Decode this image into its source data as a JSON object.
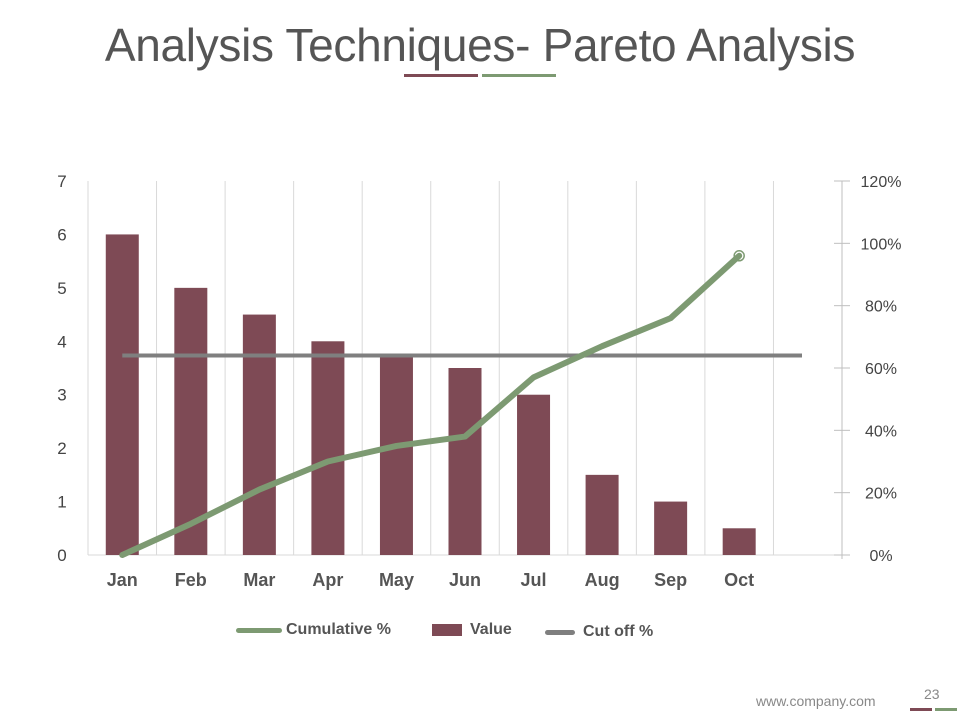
{
  "slide": {
    "title": "Analysis Techniques- Pareto Analysis",
    "footer_url": "www.company.com",
    "page_number": "23"
  },
  "colors": {
    "bar": "#7e4a55",
    "cumulative": "#7d9a72",
    "cutoff": "#7f7f7f",
    "grid": "#d9d9d9",
    "title": "#555555"
  },
  "chart_data": {
    "type": "bar",
    "categories": [
      "Jan",
      "Feb",
      "Mar",
      "Apr",
      "May",
      "Jun",
      "Jul",
      "Aug",
      "Sep",
      "Oct"
    ],
    "series": [
      {
        "name": "Value",
        "type": "bar",
        "axis": "left",
        "values": [
          6,
          5,
          4.5,
          4,
          3.7,
          3.5,
          3,
          1.5,
          1,
          0.5
        ]
      },
      {
        "name": "Cumulative %",
        "type": "line",
        "axis": "right",
        "values": [
          0,
          10,
          21,
          30,
          35,
          38,
          57,
          67,
          76,
          96
        ]
      },
      {
        "name": "Cut off %",
        "type": "line",
        "axis": "right",
        "values": [
          64,
          64,
          64,
          64,
          64,
          64,
          64,
          64,
          64,
          64
        ]
      }
    ],
    "left_axis": {
      "ticks": [
        "0",
        "1",
        "2",
        "3",
        "4",
        "5",
        "6",
        "7"
      ],
      "range": [
        0,
        7
      ]
    },
    "right_axis": {
      "ticks": [
        "0%",
        "20%",
        "40%",
        "60%",
        "80%",
        "100%",
        "120%"
      ],
      "range": [
        0,
        120
      ]
    },
    "legend": [
      "Cumulative %",
      "Value",
      "Cut off %"
    ],
    "legend_position": "bottom",
    "grid": "vertical"
  }
}
